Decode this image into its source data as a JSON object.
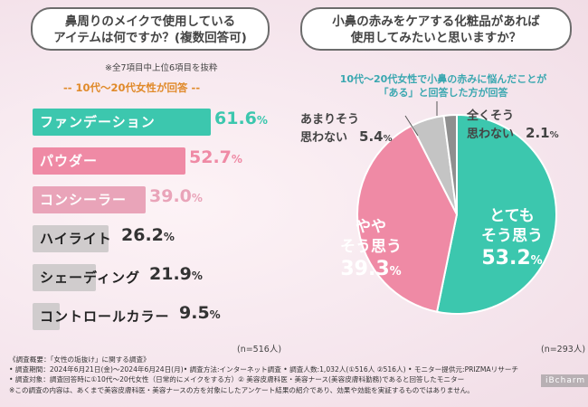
{
  "left_question": {
    "line1": "鼻周りのメイクで使用している",
    "line2": "アイテムは何ですか？(複数回答可)"
  },
  "left_note": "※全7項目中上位6項目を抜粋",
  "left_subtitle": "-- 10代〜20代女性が回答 --",
  "right_question": {
    "line1": "小鼻の赤みをケアする化粧品があれば",
    "line2": "使用してみたいと思いますか？"
  },
  "right_subtitle": {
    "line1": "10代〜20代女性で小鼻の赤みに悩んだことが",
    "line2": "「ある」と回答した方が回答"
  },
  "n_left": "(n=516人)",
  "n_right": "(n=293人)",
  "footer": [
    "《調査概要：「女性の垢抜け」に関する調査》",
    "• 調査期間：2024年6月21日(金)〜2024年6月24日(月)• 調査方法:インターネット調査 • 調査人数:1,032人(①516人 ②516人) • モニター提供元:PRIZMAリサーチ",
    "• 調査対象：調査回答時に①10代〜20代女性（日常的にメイクをする方）② 美容皮膚科医・美容ナース(美容皮膚科勤務)であると回答したモニター",
    "※この調査の内容は、あくまで美容皮膚科医・美容ナースの方を対象にしたアンケート結果の紹介であり、効果や効能を実証するものではありません。"
  ],
  "logo": "iBcharm",
  "colors": {
    "teal": "#3cc7ae",
    "pink": "#ef8aa5",
    "light_pink": "#e9a4b9",
    "grey": "#d0cccd",
    "pie_light_grey": "#c4c4c4",
    "pie_grey": "#8f8f8f"
  },
  "chart_data": [
    {
      "type": "bar",
      "orientation": "horizontal",
      "title": "鼻周りのメイクで使用しているアイテムは何ですか？(複数回答可)",
      "categories": [
        "ファンデーション",
        "パウダー",
        "コンシーラー",
        "ハイライト",
        "シェーディング",
        "コントロールカラー"
      ],
      "values": [
        61.6,
        52.7,
        39.0,
        26.2,
        21.9,
        9.5
      ],
      "value_labels": [
        "61.6",
        "52.7",
        "39.0",
        "26.2",
        "21.9",
        "9.5"
      ],
      "unit": "%",
      "xlim": [
        0,
        100
      ]
    },
    {
      "type": "pie",
      "title": "小鼻の赤みをケアする化粧品があれば使用してみたいと思いますか？",
      "labels": [
        "とても\nそう思う",
        "やや\nそう思う",
        "あまりそう\n思わない",
        "全くそう\n思わない"
      ],
      "values": [
        53.2,
        39.3,
        5.4,
        2.1
      ],
      "value_labels": [
        "53.2",
        "39.3",
        "5.4",
        "2.1"
      ],
      "unit": "%"
    }
  ]
}
